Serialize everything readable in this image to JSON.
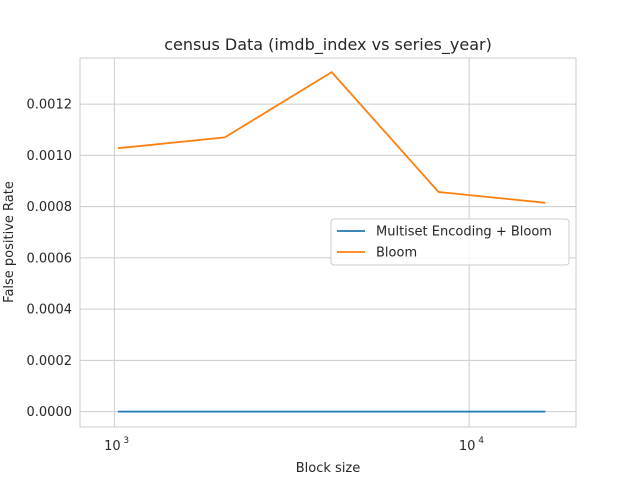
{
  "chart_data": {
    "type": "line",
    "title": "census Data (imdb_index vs series_year)",
    "xlabel": "Block size",
    "ylabel": "False positive Rate",
    "xscale": "log",
    "xlim": [
      800,
      20000
    ],
    "ylim": [
      -6e-05,
      0.00138
    ],
    "yticks": [
      "0.0000",
      "0.0002",
      "0.0004",
      "0.0006",
      "0.0008",
      "0.0010",
      "0.0012"
    ],
    "ytick_values": [
      0,
      0.0002,
      0.0004,
      0.0006,
      0.0008,
      0.001,
      0.0012
    ],
    "xticks": [
      {
        "value": 1000,
        "base": "10",
        "exp": "3"
      },
      {
        "value": 10000,
        "base": "10",
        "exp": "4"
      }
    ],
    "grid": true,
    "legend_position": "center-right",
    "x": [
      1024,
      2048,
      4096,
      8192,
      16384
    ],
    "series": [
      {
        "name": "Multiset Encoding + Bloom",
        "color": "#1f77b4",
        "values": [
          0,
          0,
          0,
          0,
          0
        ]
      },
      {
        "name": "Bloom",
        "color": "#ff7f0e",
        "values": [
          0.001028,
          0.00107,
          0.001325,
          0.000857,
          0.000815
        ]
      }
    ]
  }
}
